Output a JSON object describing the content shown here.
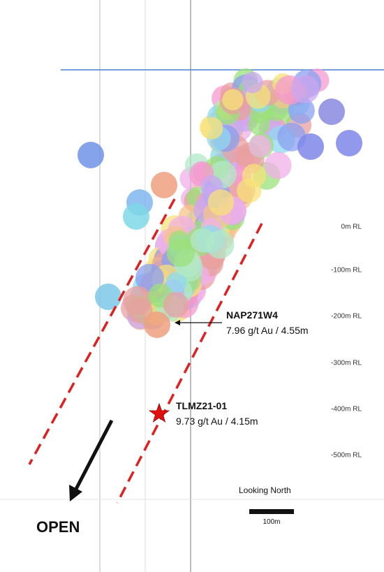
{
  "section": {
    "rl_labels": [
      "0m RL",
      "-100m RL",
      "-200m RL",
      "-300m RL",
      "-400m RL",
      "-500m RL"
    ],
    "callouts": [
      {
        "hole": "NAP271W4",
        "result": "7.96 g/t Au / 4.55m"
      },
      {
        "hole": "TLMZ21-01",
        "result": "9.73 g/t Au / 4.15m"
      }
    ],
    "view": "Looking North",
    "scale": "100m",
    "open": "OPEN"
  }
}
